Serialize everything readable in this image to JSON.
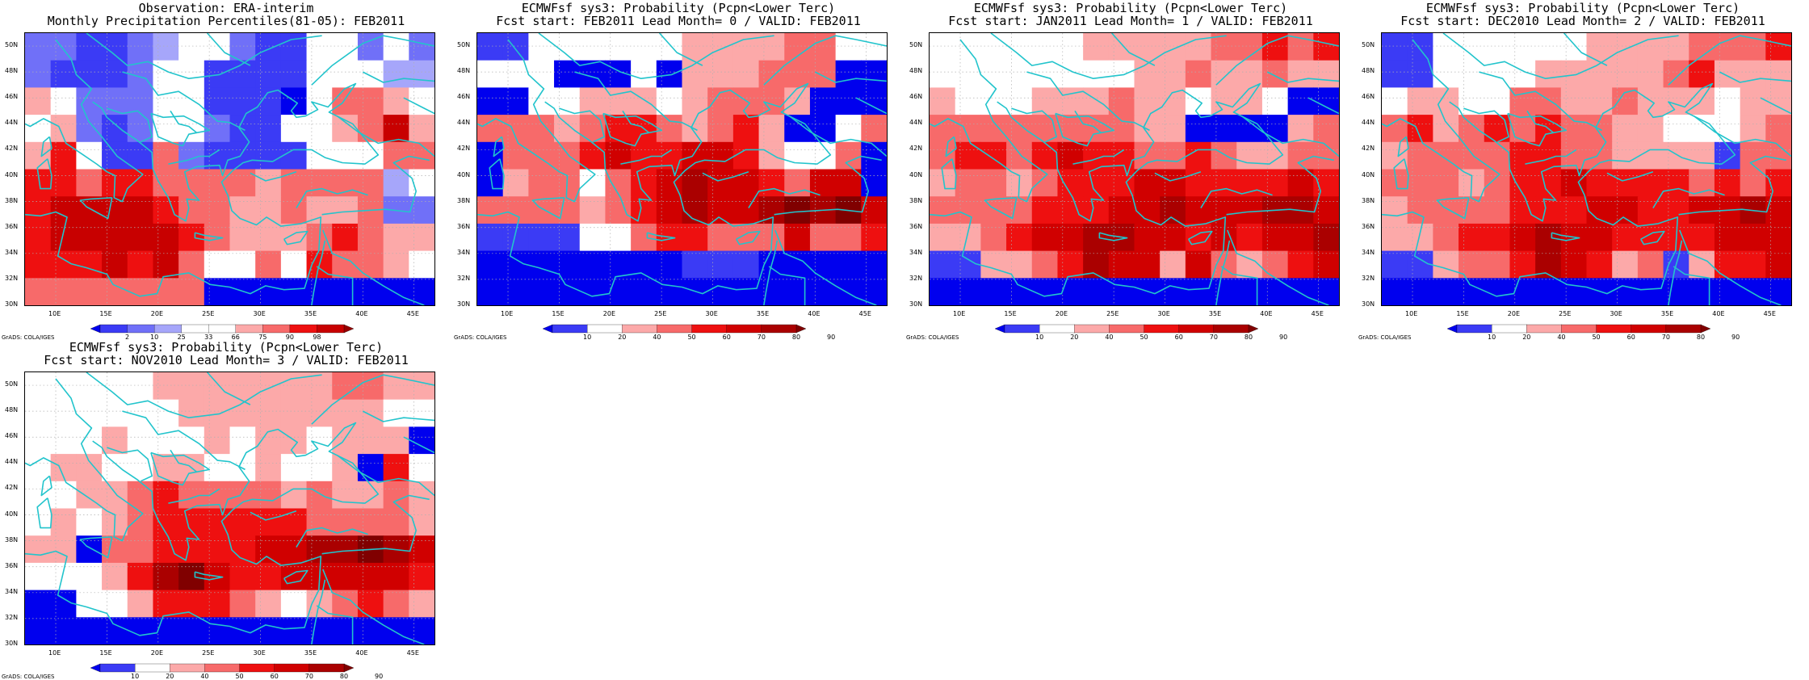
{
  "colors": {
    "coast": "#22c4cc",
    "grid": "#b0b0b0",
    "obs_scale": [
      "#0000ee",
      "#3b3bf5",
      "#7070f8",
      "#a6a6fa",
      "#ffffff",
      "#ffffff",
      "#fca9a9",
      "#f76a6a",
      "#ee1010",
      "#c80000",
      "#960000"
    ],
    "prob_scale": [
      "#0000ee",
      "#3b3bf5",
      "#ffffff",
      "#fca9a9",
      "#f76a6a",
      "#ee1010",
      "#d00000",
      "#aa0000",
      "#800000"
    ]
  },
  "axes": {
    "lon_labels": [
      "10E",
      "15E",
      "20E",
      "25E",
      "30E",
      "35E",
      "40E",
      "45E"
    ],
    "lat_labels": [
      "50N",
      "48N",
      "46N",
      "44N",
      "42N",
      "40N",
      "38N",
      "36N",
      "34N",
      "32N",
      "30N"
    ]
  },
  "credit": "GrADS: COLA/IGES",
  "panels": [
    {
      "id": "obs",
      "title1": "Observation: ERA-interim",
      "title2": "Monthly Precipitation Percentiles(81-05): FEB2011",
      "scale": "obs",
      "colorbar_ticks": [
        "2",
        "10",
        "25",
        "33",
        "66",
        "75",
        "90",
        "98"
      ],
      "grid": [
        [
          2,
          2,
          1,
          1,
          2,
          3,
          4,
          4,
          2,
          1,
          1,
          4,
          4,
          2,
          4,
          2
        ],
        [
          2,
          1,
          1,
          1,
          2,
          4,
          4,
          1,
          1,
          1,
          1,
          4,
          4,
          4,
          3,
          3
        ],
        [
          6,
          5,
          2,
          2,
          2,
          4,
          4,
          1,
          1,
          1,
          0,
          4,
          7,
          7,
          6,
          4
        ],
        [
          4,
          6,
          2,
          1,
          2,
          4,
          4,
          2,
          1,
          1,
          4,
          4,
          6,
          7,
          9,
          6
        ],
        [
          6,
          8,
          5,
          1,
          1,
          7,
          2,
          1,
          1,
          1,
          1,
          4,
          4,
          5,
          7,
          7
        ],
        [
          8,
          8,
          7,
          8,
          8,
          7,
          7,
          7,
          7,
          6,
          7,
          7,
          7,
          7,
          3,
          4
        ],
        [
          8,
          9,
          9,
          9,
          9,
          8,
          7,
          7,
          6,
          6,
          7,
          6,
          6,
          7,
          2,
          2
        ],
        [
          8,
          9,
          9,
          9,
          9,
          9,
          8,
          7,
          6,
          6,
          6,
          7,
          8,
          7,
          6,
          6
        ],
        [
          8,
          8,
          8,
          9,
          8,
          9,
          7,
          4,
          4,
          7,
          5,
          8,
          7,
          7,
          6,
          5
        ],
        [
          7,
          7,
          7,
          7,
          7,
          7,
          7,
          0,
          0,
          0,
          0,
          0,
          0,
          0,
          0,
          0
        ]
      ]
    },
    {
      "id": "lead0",
      "title1": "ECMWFsf sys3: Probability (Pcpn<Lower Terc)",
      "title2": "Fcst start: FEB2011  Lead Month= 0 / VALID: FEB2011",
      "scale": "prob",
      "colorbar_ticks": [
        "10",
        "20",
        "40",
        "50",
        "60",
        "70",
        "80",
        "90"
      ],
      "grid": [
        [
          1,
          1,
          2,
          2,
          2,
          2,
          2,
          2,
          3,
          3,
          3,
          3,
          4,
          4,
          2,
          2
        ],
        [
          2,
          2,
          2,
          0,
          0,
          0,
          2,
          0,
          3,
          3,
          3,
          4,
          4,
          4,
          0,
          0
        ],
        [
          0,
          0,
          2,
          2,
          3,
          3,
          3,
          2,
          3,
          4,
          4,
          4,
          3,
          0,
          0,
          0
        ],
        [
          4,
          4,
          4,
          3,
          4,
          5,
          5,
          4,
          3,
          4,
          5,
          3,
          0,
          0,
          2,
          4
        ],
        [
          0,
          4,
          4,
          4,
          5,
          6,
          5,
          5,
          6,
          6,
          5,
          3,
          2,
          2,
          4,
          0
        ],
        [
          0,
          3,
          4,
          4,
          2,
          4,
          5,
          6,
          7,
          6,
          6,
          5,
          4,
          6,
          6,
          0
        ],
        [
          4,
          4,
          4,
          4,
          3,
          4,
          5,
          6,
          7,
          6,
          6,
          7,
          8,
          7,
          8,
          6
        ],
        [
          1,
          1,
          1,
          1,
          2,
          2,
          4,
          5,
          5,
          4,
          4,
          4,
          6,
          4,
          4,
          5
        ],
        [
          0,
          0,
          0,
          0,
          0,
          0,
          0,
          0,
          1,
          1,
          1,
          0,
          0,
          0,
          0,
          0
        ],
        [
          0,
          0,
          0,
          0,
          0,
          0,
          0,
          0,
          0,
          0,
          0,
          0,
          0,
          0,
          0,
          0
        ]
      ]
    },
    {
      "id": "lead1",
      "title1": "ECMWFsf sys3: Probability (Pcpn<Lower Terc)",
      "title2": "Fcst start: JAN2011  Lead Month= 1 / VALID: FEB2011",
      "scale": "prob",
      "colorbar_ticks": [
        "10",
        "20",
        "40",
        "50",
        "60",
        "70",
        "80",
        "90"
      ],
      "grid": [
        [
          2,
          2,
          2,
          2,
          2,
          2,
          3,
          3,
          3,
          3,
          3,
          4,
          4,
          5,
          4,
          5
        ],
        [
          2,
          2,
          2,
          2,
          2,
          2,
          2,
          2,
          3,
          3,
          4,
          3,
          3,
          4,
          3,
          3
        ],
        [
          3,
          2,
          2,
          2,
          3,
          3,
          3,
          4,
          3,
          3,
          2,
          3,
          3,
          2,
          0,
          0
        ],
        [
          4,
          4,
          4,
          4,
          4,
          4,
          4,
          4,
          3,
          3,
          0,
          0,
          0,
          0,
          3,
          4
        ],
        [
          4,
          5,
          5,
          4,
          5,
          6,
          5,
          5,
          4,
          4,
          5,
          4,
          3,
          3,
          4,
          4
        ],
        [
          3,
          4,
          4,
          3,
          4,
          5,
          5,
          5,
          6,
          6,
          5,
          5,
          5,
          5,
          6,
          5
        ],
        [
          4,
          4,
          4,
          4,
          5,
          5,
          5,
          6,
          6,
          7,
          6,
          6,
          6,
          7,
          7,
          6
        ],
        [
          3,
          3,
          4,
          5,
          6,
          6,
          7,
          7,
          6,
          6,
          5,
          6,
          5,
          6,
          6,
          7
        ],
        [
          1,
          1,
          3,
          3,
          4,
          5,
          7,
          6,
          6,
          3,
          6,
          4,
          3,
          4,
          5,
          6
        ],
        [
          0,
          0,
          0,
          0,
          0,
          0,
          0,
          0,
          0,
          0,
          0,
          0,
          0,
          0,
          0,
          0
        ]
      ]
    },
    {
      "id": "lead2",
      "title1": "ECMWFsf sys3: Probability (Pcpn<Lower Terc)",
      "title2": "Fcst start: DEC2010  Lead Month= 2 / VALID: FEB2011",
      "scale": "prob",
      "colorbar_ticks": [
        "10",
        "20",
        "40",
        "50",
        "60",
        "70",
        "80",
        "90"
      ],
      "grid": [
        [
          1,
          1,
          2,
          2,
          2,
          2,
          2,
          2,
          3,
          3,
          3,
          3,
          4,
          4,
          4,
          5
        ],
        [
          1,
          1,
          2,
          2,
          2,
          2,
          3,
          3,
          3,
          3,
          3,
          4,
          5,
          3,
          3,
          3
        ],
        [
          2,
          3,
          3,
          2,
          2,
          4,
          4,
          3,
          3,
          4,
          3,
          3,
          3,
          2,
          3,
          3
        ],
        [
          4,
          5,
          3,
          4,
          5,
          4,
          5,
          4,
          4,
          3,
          3,
          2,
          2,
          2,
          3,
          4
        ],
        [
          3,
          4,
          4,
          4,
          4,
          5,
          5,
          4,
          4,
          3,
          3,
          3,
          3,
          1,
          4,
          4
        ],
        [
          4,
          4,
          4,
          3,
          4,
          5,
          5,
          6,
          5,
          5,
          5,
          5,
          4,
          5,
          4,
          5
        ],
        [
          3,
          4,
          4,
          4,
          4,
          5,
          5,
          5,
          6,
          6,
          5,
          5,
          6,
          6,
          7,
          6
        ],
        [
          3,
          3,
          4,
          5,
          5,
          6,
          7,
          6,
          6,
          5,
          5,
          5,
          5,
          6,
          6,
          6
        ],
        [
          1,
          1,
          3,
          4,
          4,
          5,
          7,
          6,
          5,
          3,
          4,
          1,
          3,
          5,
          5,
          6
        ],
        [
          0,
          0,
          0,
          0,
          0,
          0,
          0,
          0,
          0,
          0,
          0,
          0,
          0,
          0,
          0,
          0
        ]
      ]
    },
    {
      "id": "lead3",
      "title1": "ECMWFsf sys3: Probability (Pcpn<Lower Terc)",
      "title2": "Fcst start: NOV2010  Lead Month= 3 / VALID: FEB2011",
      "scale": "prob",
      "colorbar_ticks": [
        "10",
        "20",
        "40",
        "50",
        "60",
        "70",
        "80",
        "90"
      ],
      "grid": [
        [
          2,
          2,
          2,
          2,
          2,
          3,
          3,
          3,
          3,
          3,
          3,
          3,
          4,
          4,
          3,
          3
        ],
        [
          2,
          2,
          2,
          2,
          2,
          2,
          3,
          3,
          3,
          3,
          3,
          3,
          3,
          3,
          2,
          2
        ],
        [
          2,
          2,
          2,
          3,
          2,
          2,
          2,
          3,
          2,
          3,
          3,
          2,
          3,
          3,
          3,
          0
        ],
        [
          2,
          3,
          3,
          2,
          2,
          3,
          3,
          2,
          2,
          3,
          2,
          2,
          3,
          0,
          5,
          2
        ],
        [
          2,
          2,
          3,
          3,
          4,
          5,
          4,
          4,
          4,
          4,
          3,
          4,
          3,
          3,
          4,
          3
        ],
        [
          2,
          3,
          2,
          3,
          4,
          5,
          5,
          5,
          5,
          5,
          5,
          4,
          4,
          4,
          4,
          3
        ],
        [
          3,
          3,
          0,
          4,
          4,
          5,
          5,
          5,
          5,
          6,
          6,
          7,
          7,
          8,
          7,
          6
        ],
        [
          2,
          2,
          2,
          3,
          5,
          7,
          8,
          6,
          5,
          5,
          6,
          6,
          6,
          6,
          6,
          5
        ],
        [
          0,
          0,
          2,
          2,
          3,
          5,
          5,
          5,
          4,
          3,
          2,
          3,
          4,
          5,
          4,
          3
        ],
        [
          0,
          0,
          0,
          0,
          0,
          0,
          0,
          0,
          0,
          0,
          0,
          0,
          0,
          0,
          0,
          0
        ]
      ]
    }
  ]
}
